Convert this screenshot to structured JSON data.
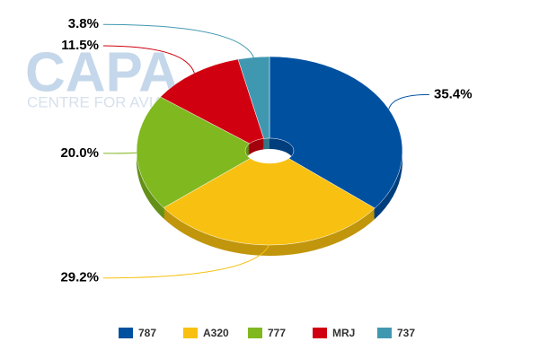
{
  "chart_data": {
    "type": "pie",
    "watermark": "CAPA",
    "watermark_subtitle": "CENTRE FOR AVIATION",
    "categories": [
      "787",
      "A320",
      "777",
      "MRJ",
      "737"
    ],
    "values": [
      35.4,
      29.2,
      20.0,
      11.5,
      3.8
    ],
    "value_labels": [
      "35.4%",
      "29.2%",
      "20.0%",
      "11.5%",
      "3.8%"
    ],
    "colors": [
      "#0050a0",
      "#f8c010",
      "#80b820",
      "#d00010",
      "#4098b0"
    ],
    "legend": "bottom"
  }
}
